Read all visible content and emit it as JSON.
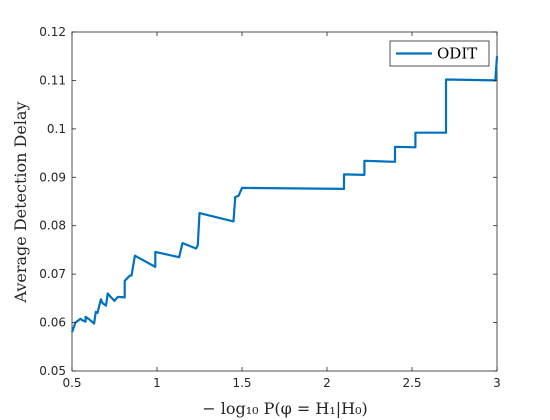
{
  "chart_data": {
    "type": "line",
    "title": "",
    "xlabel": "− log₁₀ P(φ = H₁|H₀)",
    "ylabel": "Average Detection Delay",
    "xlim": [
      0.5,
      3
    ],
    "ylim": [
      0.05,
      0.12
    ],
    "xticks": [
      "0.5",
      "1",
      "1.5",
      "2",
      "2.5",
      "3"
    ],
    "xtick_values": [
      0.5,
      1,
      1.5,
      2,
      2.5,
      3
    ],
    "yticks": [
      "0.05",
      "0.06",
      "0.07",
      "0.08",
      "0.09",
      "0.1",
      "0.11",
      "0.12"
    ],
    "ytick_values": [
      0.05,
      0.06,
      0.07,
      0.08,
      0.09,
      0.1,
      0.11,
      0.12
    ],
    "grid": false,
    "legend_position": "top-right",
    "series": [
      {
        "name": "ODIT",
        "color": "#0072BD",
        "points": [
          [
            0.5,
            0.058
          ],
          [
            0.52,
            0.06
          ],
          [
            0.55,
            0.0608
          ],
          [
            0.56,
            0.0605
          ],
          [
            0.58,
            0.0602
          ],
          [
            0.58,
            0.0612
          ],
          [
            0.6,
            0.0607
          ],
          [
            0.63,
            0.0598
          ],
          [
            0.64,
            0.0622
          ],
          [
            0.65,
            0.062
          ],
          [
            0.67,
            0.0648
          ],
          [
            0.68,
            0.064
          ],
          [
            0.7,
            0.0635
          ],
          [
            0.71,
            0.066
          ],
          [
            0.73,
            0.0652
          ],
          [
            0.75,
            0.0645
          ],
          [
            0.77,
            0.0653
          ],
          [
            0.81,
            0.0652
          ],
          [
            0.81,
            0.0686
          ],
          [
            0.84,
            0.0697
          ],
          [
            0.85,
            0.0697
          ],
          [
            0.87,
            0.0738
          ],
          [
            0.99,
            0.0715
          ],
          [
            0.99,
            0.0746
          ],
          [
            1.13,
            0.0735
          ],
          [
            1.15,
            0.0764
          ],
          [
            1.23,
            0.0753
          ],
          [
            1.24,
            0.076
          ],
          [
            1.25,
            0.0826
          ],
          [
            1.45,
            0.0809
          ],
          [
            1.46,
            0.0859
          ],
          [
            1.48,
            0.0862
          ],
          [
            1.5,
            0.0878
          ],
          [
            2.1,
            0.0876
          ],
          [
            2.1,
            0.0906
          ],
          [
            2.22,
            0.0905
          ],
          [
            2.22,
            0.0934
          ],
          [
            2.4,
            0.0932
          ],
          [
            2.4,
            0.0963
          ],
          [
            2.52,
            0.0962
          ],
          [
            2.52,
            0.0992
          ],
          [
            2.7,
            0.0992
          ],
          [
            2.7,
            0.1102
          ],
          [
            2.99,
            0.11
          ],
          [
            3.0,
            0.115
          ]
        ]
      }
    ]
  }
}
